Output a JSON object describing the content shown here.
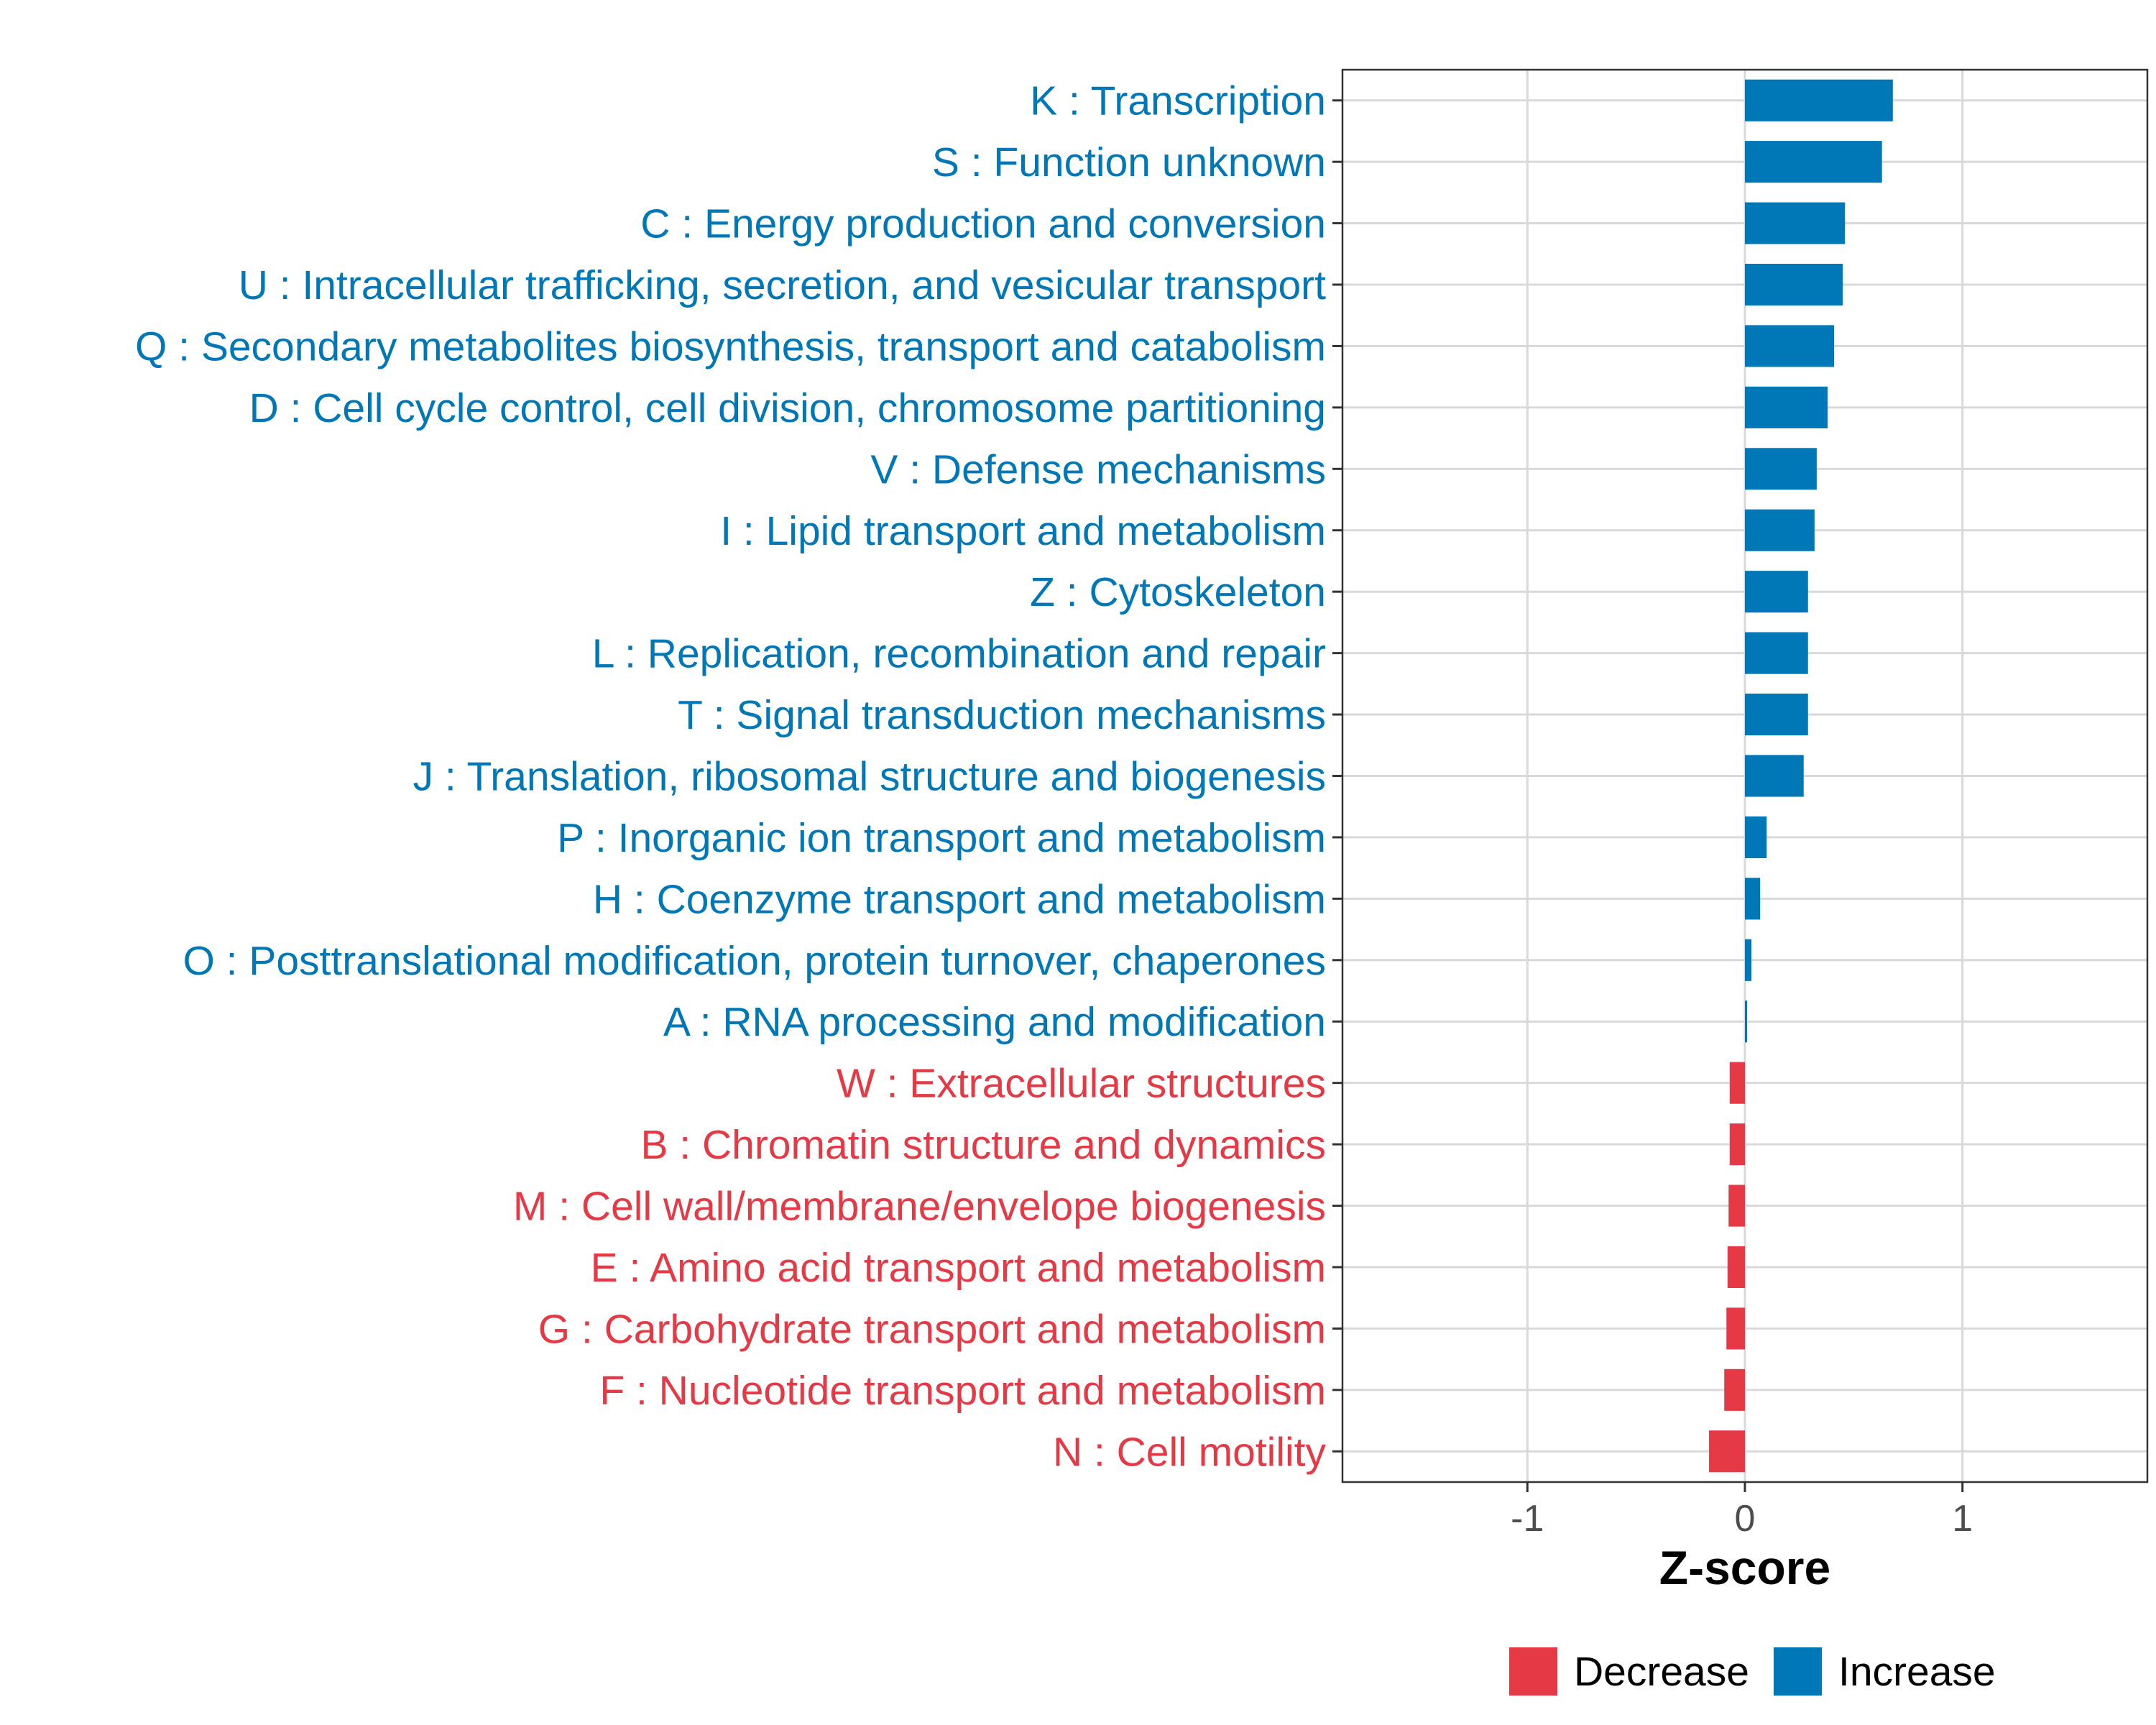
{
  "chart_data": {
    "type": "bar",
    "orientation": "horizontal",
    "categories": [
      "K : Transcription",
      "S : Function unknown",
      "C : Energy production and conversion",
      "U : Intracellular trafficking, secretion, and vesicular transport",
      "Q : Secondary metabolites biosynthesis, transport and catabolism",
      "D : Cell cycle control, cell division, chromosome partitioning",
      "V : Defense mechanisms",
      "I : Lipid transport and metabolism",
      "Z : Cytoskeleton",
      "L : Replication, recombination and repair",
      "T : Signal transduction mechanisms",
      "J : Translation, ribosomal structure and biogenesis",
      "P : Inorganic ion transport and metabolism",
      "H : Coenzyme transport and metabolism",
      "O : Posttranslational modification, protein turnover, chaperones",
      "A : RNA processing and modification",
      "W : Extracellular structures",
      "B : Chromatin structure and dynamics",
      "M : Cell wall/membrane/envelope biogenesis",
      "E : Amino acid transport and metabolism",
      "G : Carbohydrate transport and metabolism",
      "F : Nucleotide transport and metabolism",
      "N : Cell motility"
    ],
    "values": [
      0.68,
      0.63,
      0.46,
      0.45,
      0.41,
      0.38,
      0.33,
      0.32,
      0.29,
      0.29,
      0.29,
      0.27,
      0.1,
      0.07,
      0.03,
      0.01,
      -0.07,
      -0.07,
      -0.075,
      -0.08,
      -0.085,
      -0.095,
      -0.165
    ],
    "groups": [
      "Increase",
      "Increase",
      "Increase",
      "Increase",
      "Increase",
      "Increase",
      "Increase",
      "Increase",
      "Increase",
      "Increase",
      "Increase",
      "Increase",
      "Increase",
      "Increase",
      "Increase",
      "Increase",
      "Decrease",
      "Decrease",
      "Decrease",
      "Decrease",
      "Decrease",
      "Decrease",
      "Decrease"
    ],
    "title": "",
    "xlabel": "Z-score",
    "ylabel": "",
    "xlim": [
      -1.85,
      1.85
    ],
    "xticks": [
      -1,
      0,
      1
    ],
    "xtick_labels": [
      "-1",
      "0",
      "1"
    ],
    "grid": true,
    "legend": {
      "position": "bottom",
      "entries": [
        {
          "label": "Decrease",
          "color": "#E63946"
        },
        {
          "label": "Increase",
          "color": "#0077B6"
        }
      ]
    },
    "colors": {
      "Decrease": "#E63946",
      "Increase": "#0077B6"
    }
  }
}
